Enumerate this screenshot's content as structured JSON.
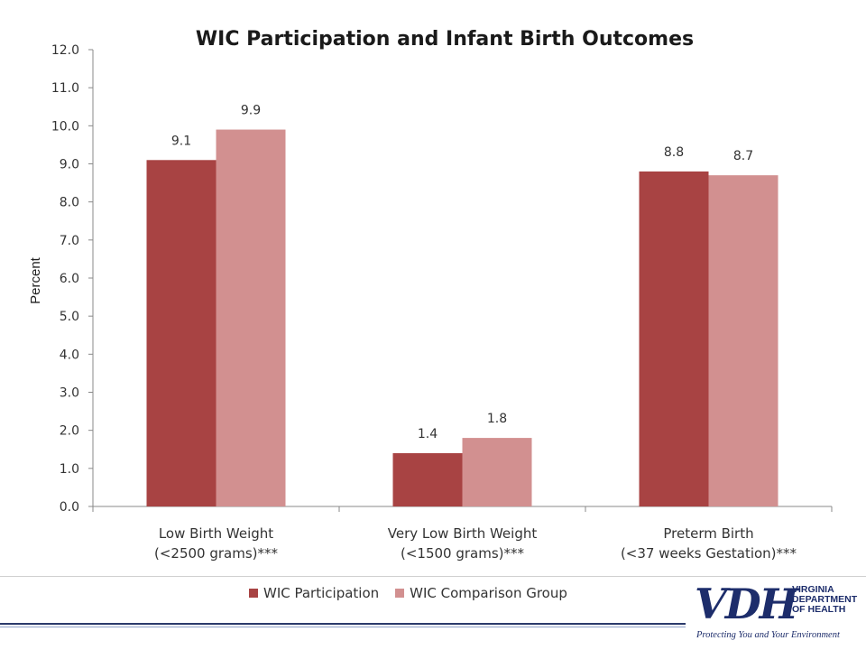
{
  "chart_data": {
    "type": "bar",
    "title": "WIC Participation and Infant Birth Outcomes",
    "xlabel": "",
    "ylabel": "Percent",
    "ylim": [
      0,
      12
    ],
    "yticks": [
      "0.0",
      "1.0",
      "2.0",
      "3.0",
      "4.0",
      "5.0",
      "6.0",
      "7.0",
      "8.0",
      "9.0",
      "10.0",
      "11.0",
      "12.0"
    ],
    "grid": false,
    "legend_position": "bottom",
    "categories": [
      [
        "Low Birth Weight",
        "(<2500 grams)***"
      ],
      [
        "Very Low Birth Weight",
        "(<1500 grams)***"
      ],
      [
        "Preterm Birth",
        "(<37 weeks Gestation)***"
      ]
    ],
    "series": [
      {
        "name": "WIC Participation",
        "color": "#a84343",
        "values": [
          9.1,
          1.4,
          8.8
        ]
      },
      {
        "name": "WIC Comparison Group",
        "color": "#d29090",
        "values": [
          9.9,
          1.8,
          8.7
        ]
      }
    ]
  },
  "logo": {
    "mark": "VDH",
    "org_lines": [
      "VIRGINIA",
      "DEPARTMENT",
      "OF HEALTH"
    ],
    "tagline": "Protecting You and Your Environment"
  }
}
